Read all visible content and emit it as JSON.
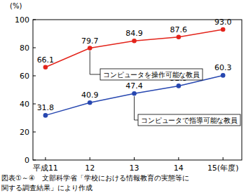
{
  "chart_data": {
    "type": "line",
    "ylabel": "(%)",
    "categories": [
      "平成11",
      "12",
      "13",
      "14",
      "15(年度)"
    ],
    "series": [
      {
        "name": "コンピュータを操作可能な教員",
        "color": "#e3241b",
        "marker": "circle",
        "values": [
          66.1,
          79.7,
          84.9,
          87.6,
          93.0
        ],
        "value_labels": [
          "66.1",
          "79.7",
          "84.9",
          "87.6",
          "93.0"
        ]
      },
      {
        "name": "コンピュータで指導可能な教員",
        "color": "#2747b0",
        "marker": "circle",
        "values": [
          31.8,
          40.9,
          47.4,
          52.8,
          60.3
        ]
      }
    ],
    "ylim": [
      0,
      100
    ],
    "yticks": [
      0,
      20,
      40,
      60,
      80,
      100
    ],
    "grid": false,
    "data_labels": true,
    "caption": [
      "図表①～④　文部科学省「学校における情報教育の実態等に",
      "関する調査結果」により作成"
    ]
  }
}
